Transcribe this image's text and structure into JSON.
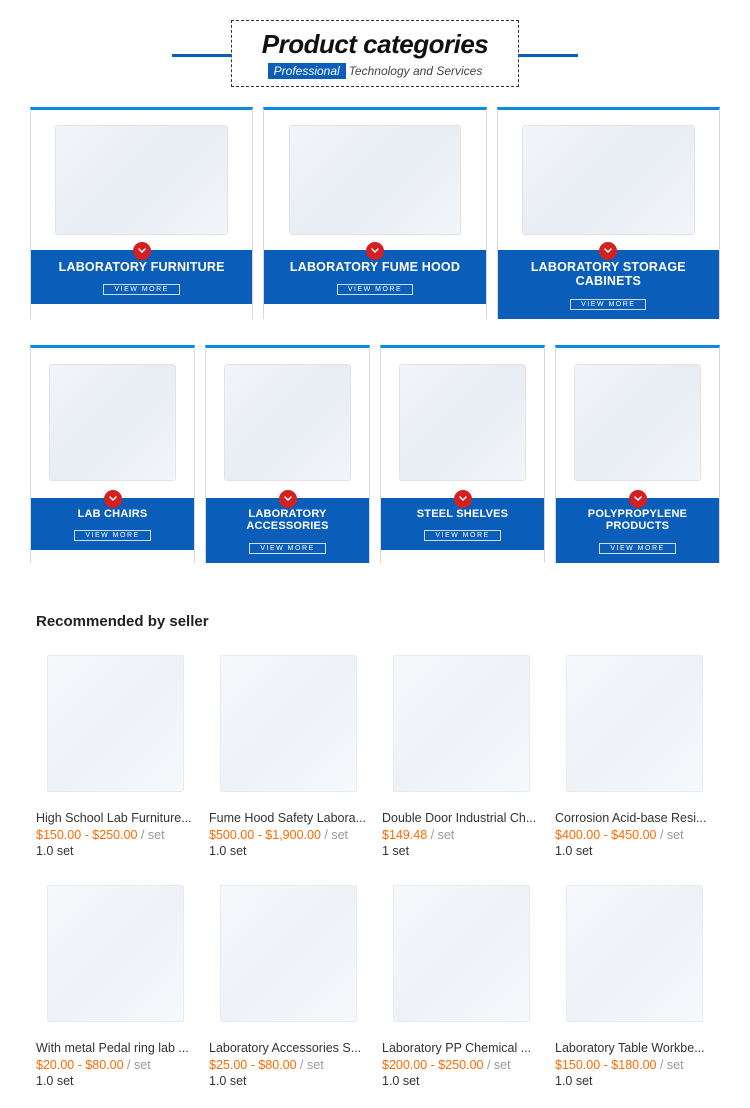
{
  "header": {
    "title": "Product categories",
    "subtitle_highlight": "Professional",
    "subtitle_rest": "Technology and Services"
  },
  "colors": {
    "accent_blue": "#0a5db8",
    "top_border_blue": "#0a8be0",
    "badge_red": "#d32020",
    "price_orange": "#ff6a00",
    "text_gray": "#999999"
  },
  "categories_row1": [
    {
      "title": "LABORATORY FURNITURE",
      "view": "VIEW MORE"
    },
    {
      "title": "LABORATORY FUME HOOD",
      "view": "VIEW MORE"
    },
    {
      "title": "LABORATORY STORAGE CABINETS",
      "view": "VIEW MORE"
    }
  ],
  "categories_row2": [
    {
      "title": "LAB CHAIRS",
      "view": "VIEW MORE"
    },
    {
      "title": "LABORATORY ACCESSORIES",
      "view": "VIEW MORE"
    },
    {
      "title": "STEEL SHELVES",
      "view": "VIEW MORE"
    },
    {
      "title": "POLYPROPYLENE PRODUCTS",
      "view": "VIEW MORE"
    }
  ],
  "reco": {
    "heading": "Recommended by seller",
    "items": [
      {
        "name": "High School Lab Furniture...",
        "price": "$150.00 - $250.00",
        "unit": " / set",
        "moq": "1.0 set"
      },
      {
        "name": "Fume Hood Safety Labora...",
        "price": "$500.00 - $1,900.00",
        "unit": " / set",
        "moq": "1.0 set"
      },
      {
        "name": "Double Door Industrial Ch...",
        "price": "$149.48",
        "unit": " / set",
        "moq": "1 set"
      },
      {
        "name": "Corrosion Acid-base Resi...",
        "price": "$400.00 - $450.00",
        "unit": " / set",
        "moq": "1.0 set"
      },
      {
        "name": "With metal Pedal ring lab ...",
        "price": "$20.00 - $80.00",
        "unit": " / set",
        "moq": "1.0 set"
      },
      {
        "name": "Laboratory Accessories S...",
        "price": "$25.00 - $80.00",
        "unit": " / set",
        "moq": "1.0 set"
      },
      {
        "name": "Laboratory PP Chemical ...",
        "price": "$200.00 - $250.00",
        "unit": " / set",
        "moq": "1.0 set"
      },
      {
        "name": "Laboratory Table Workbe...",
        "price": "$150.00 - $180.00",
        "unit": " / set",
        "moq": "1.0 set"
      }
    ]
  }
}
